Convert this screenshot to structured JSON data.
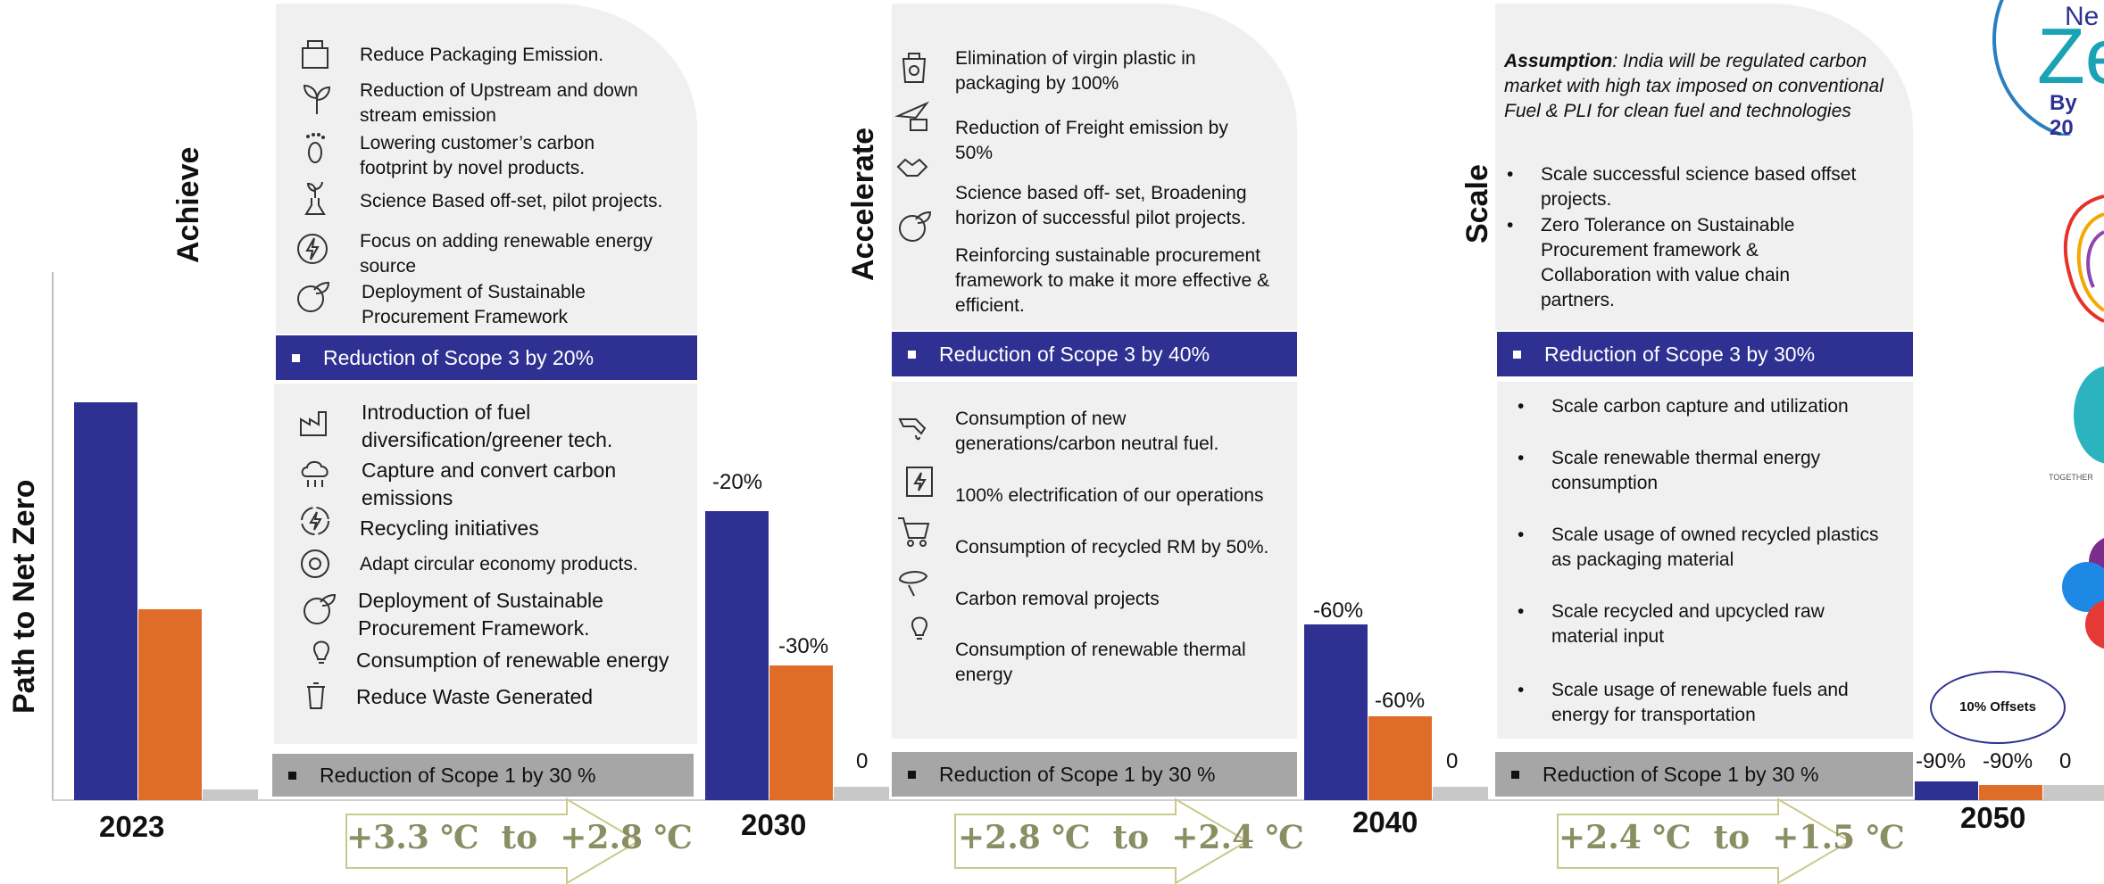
{
  "axis_label": "Path to Net Zero",
  "phases": {
    "achieve": "Achieve",
    "accelerate": "Accelerate",
    "scale": "Scale"
  },
  "years": [
    "2023",
    "2030",
    "2040",
    "2050"
  ],
  "bar_labels": {
    "y2030": [
      "-20%",
      "-30%",
      "0"
    ],
    "y2040": [
      "-60%",
      "-60%",
      "0"
    ],
    "y2050": [
      "-90%",
      "-90%",
      "0"
    ]
  },
  "offsets_label": "10% Offsets",
  "temperatures": [
    "+3.3 ℃  to  +2.8 ℃",
    "+2.8 ℃  to  +2.4 ℃",
    "+2.4 ℃  to  +1.5 ℃"
  ],
  "col1": {
    "scope3_items": [
      "Reduce Packaging Emission.",
      "Reduction of Upstream and down stream emission",
      "Lowering customer’s carbon footprint by novel products.",
      "Science Based off-set, pilot projects.",
      "Focus on adding renewable energy source",
      "Deployment of Sustainable Procurement Framework"
    ],
    "scope3_band": "Reduction of Scope 3 by 20%",
    "scope1_items": [
      "Introduction of fuel diversification/greener tech.",
      "Capture and convert carbon emissions",
      "Recycling initiatives",
      "Adapt circular economy products.",
      "Deployment of Sustainable Procurement Framework.",
      "Consumption of renewable energy",
      "Reduce Waste Generated"
    ],
    "scope1_band": "Reduction of Scope 1 by 30 %"
  },
  "col2": {
    "scope3_items": [
      "Elimination of virgin plastic in packaging by 100%",
      "Reduction of Freight emission by 50%",
      "Science based off- set, Broadening horizon of successful pilot projects.",
      "Reinforcing sustainable procurement framework to make it more effective & efficient."
    ],
    "scope3_band": "Reduction of Scope 3 by 40%",
    "scope1_items": [
      "Consumption of new generations/carbon neutral fuel.",
      "100% electrification of our operations",
      "Consumption of recycled RM by 50%.",
      "Carbon removal projects",
      "Consumption of renewable thermal energy"
    ],
    "scope1_band": "Reduction of Scope 1 by 30 %"
  },
  "col3": {
    "assumption_label": "Assumption",
    "assumption_text": ": India will be regulated carbon market with high tax imposed on conventional Fuel & PLI for clean fuel and technologies",
    "scope3_items": [
      "Scale successful science based offset projects.",
      "Zero Tolerance on Sustainable Procurement framework & Collaboration with value chain partners."
    ],
    "scope3_band": "Reduction of Scope 3 by 30%",
    "scope1_items": [
      "Scale carbon capture and utilization",
      "Scale renewable thermal energy consumption",
      "Scale usage of owned recycled plastics as packaging material",
      "Scale recycled and upcycled raw material input",
      "Scale usage of renewable fuels and energy for transportation"
    ],
    "scope1_band": "Reduction of Scope 1  by 30 %"
  },
  "logo_text": {
    "net": "Ne",
    "zero": "Ze",
    "by": "By 20",
    "together": "TOGETHER"
  },
  "colors": {
    "scope3": "#2e3192",
    "scope1": "#e06c2a",
    "other": "#c8c8c8",
    "panel": "#f0f0f0"
  }
}
